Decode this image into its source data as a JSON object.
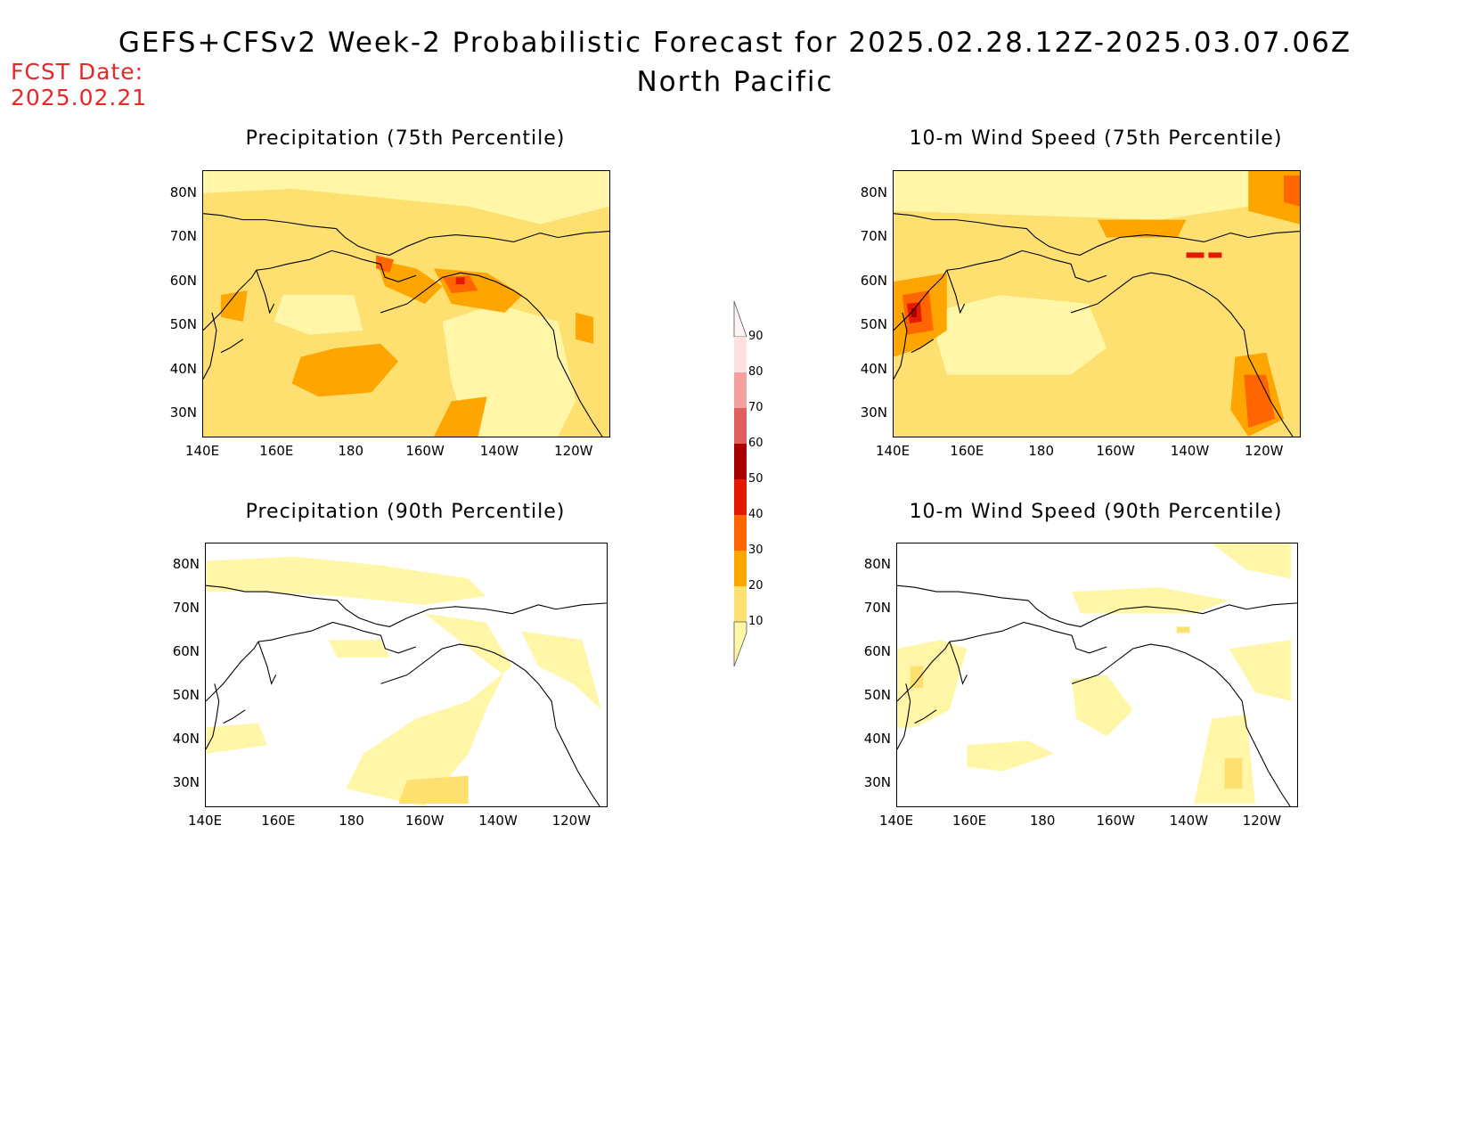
{
  "header": {
    "title": "GEFS+CFSv2 Week-2 Probabilistic Forecast for 2025.02.28.12Z-2025.03.07.06Z",
    "subtitle": "North Pacific",
    "fcst_label": "FCST Date:",
    "fcst_date": "2025.02.21"
  },
  "panels": [
    {
      "id": "precip75",
      "title": "Precipitation (75th Percentile)"
    },
    {
      "id": "wind75",
      "title": "10-m Wind Speed (75th Percentile)"
    },
    {
      "id": "precip90",
      "title": "Precipitation (90th Percentile)"
    },
    {
      "id": "wind90",
      "title": "10-m Wind Speed (90th Percentile)"
    }
  ],
  "axes": {
    "lat_ticks": [
      "80N",
      "70N",
      "60N",
      "50N",
      "40N",
      "30N"
    ],
    "lon_ticks": [
      "140E",
      "160E",
      "180",
      "160W",
      "140W",
      "120W"
    ]
  },
  "colorbar": {
    "levels": [
      "10",
      "20",
      "30",
      "40",
      "50",
      "60",
      "70",
      "80",
      "90"
    ],
    "colors": [
      "#fff6a8",
      "#fde070",
      "#ffa500",
      "#ff6600",
      "#e41a00",
      "#a80000",
      "#e06060",
      "#f5a0a0",
      "#ffe0e0"
    ]
  }
}
